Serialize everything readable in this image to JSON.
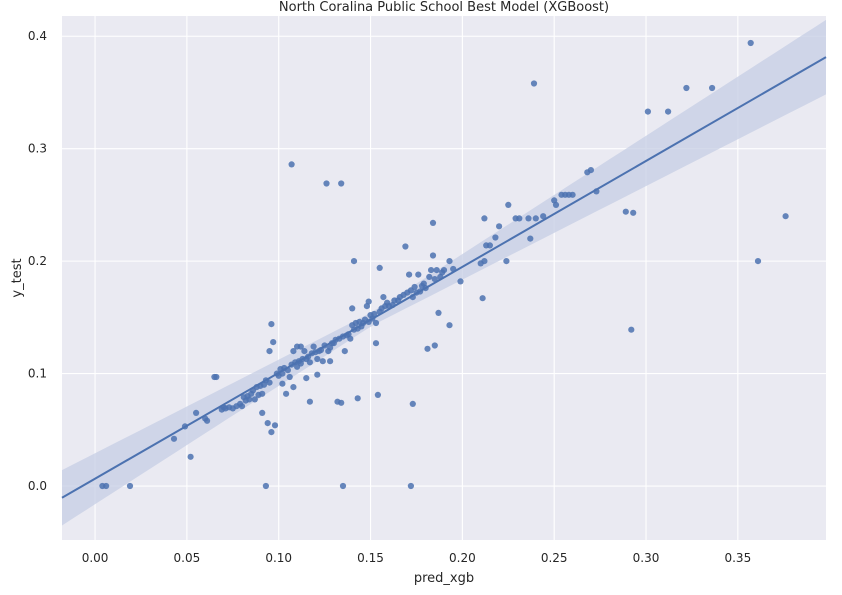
{
  "chart_data": {
    "type": "scatter",
    "title": "North Coralina Public School Best Model (XGBoost)",
    "xlabel": "pred_xgb",
    "ylabel": "y_test",
    "xlim": [
      -0.018,
      0.398
    ],
    "ylim": [
      -0.048,
      0.418
    ],
    "xticks": [
      0.0,
      0.05,
      0.1,
      0.15,
      0.2,
      0.25,
      0.3,
      0.35
    ],
    "xtick_labels": [
      "0.00",
      "0.05",
      "0.10",
      "0.15",
      "0.20",
      "0.25",
      "0.30",
      "0.35"
    ],
    "yticks": [
      0.0,
      0.1,
      0.2,
      0.3,
      0.4
    ],
    "ytick_labels": [
      "0.0",
      "0.1",
      "0.2",
      "0.3",
      "0.4"
    ],
    "grid": true,
    "colors": {
      "background": "#eaeaf2",
      "grid": "#ffffff",
      "point": "#4c72b0",
      "line": "#4c72b0",
      "band": "#c5cde4"
    },
    "regression": {
      "slope": 0.942,
      "intercept": 0.0065,
      "ci_half_width_mean": 0.006,
      "ci_growth": 0.11
    },
    "points": [
      [
        0.004,
        0.0
      ],
      [
        0.006,
        0.0
      ],
      [
        0.019,
        0.0
      ],
      [
        0.043,
        0.042
      ],
      [
        0.049,
        0.053
      ],
      [
        0.052,
        0.026
      ],
      [
        0.055,
        0.065
      ],
      [
        0.06,
        0.06
      ],
      [
        0.061,
        0.058
      ],
      [
        0.065,
        0.097
      ],
      [
        0.066,
        0.097
      ],
      [
        0.069,
        0.068
      ],
      [
        0.07,
        0.07
      ],
      [
        0.071,
        0.069
      ],
      [
        0.073,
        0.07
      ],
      [
        0.075,
        0.069
      ],
      [
        0.077,
        0.071
      ],
      [
        0.079,
        0.073
      ],
      [
        0.08,
        0.071
      ],
      [
        0.081,
        0.079
      ],
      [
        0.082,
        0.076
      ],
      [
        0.083,
        0.08
      ],
      [
        0.084,
        0.077
      ],
      [
        0.085,
        0.082
      ],
      [
        0.086,
        0.085
      ],
      [
        0.087,
        0.077
      ],
      [
        0.088,
        0.088
      ],
      [
        0.089,
        0.081
      ],
      [
        0.09,
        0.089
      ],
      [
        0.091,
        0.082
      ],
      [
        0.091,
        0.065
      ],
      [
        0.092,
        0.09
      ],
      [
        0.093,
        0.094
      ],
      [
        0.093,
        0.0
      ],
      [
        0.094,
        0.056
      ],
      [
        0.095,
        0.12
      ],
      [
        0.095,
        0.092
      ],
      [
        0.096,
        0.144
      ],
      [
        0.096,
        0.048
      ],
      [
        0.097,
        0.128
      ],
      [
        0.098,
        0.054
      ],
      [
        0.099,
        0.1
      ],
      [
        0.1,
        0.098
      ],
      [
        0.101,
        0.104
      ],
      [
        0.102,
        0.1
      ],
      [
        0.102,
        0.091
      ],
      [
        0.103,
        0.105
      ],
      [
        0.104,
        0.082
      ],
      [
        0.105,
        0.103
      ],
      [
        0.106,
        0.097
      ],
      [
        0.107,
        0.286
      ],
      [
        0.107,
        0.108
      ],
      [
        0.108,
        0.12
      ],
      [
        0.108,
        0.088
      ],
      [
        0.109,
        0.11
      ],
      [
        0.11,
        0.106
      ],
      [
        0.11,
        0.124
      ],
      [
        0.111,
        0.111
      ],
      [
        0.112,
        0.109
      ],
      [
        0.112,
        0.124
      ],
      [
        0.113,
        0.113
      ],
      [
        0.114,
        0.12
      ],
      [
        0.115,
        0.096
      ],
      [
        0.115,
        0.113
      ],
      [
        0.116,
        0.115
      ],
      [
        0.117,
        0.11
      ],
      [
        0.117,
        0.075
      ],
      [
        0.118,
        0.118
      ],
      [
        0.119,
        0.124
      ],
      [
        0.12,
        0.119
      ],
      [
        0.121,
        0.113
      ],
      [
        0.121,
        0.099
      ],
      [
        0.122,
        0.12
      ],
      [
        0.123,
        0.121
      ],
      [
        0.124,
        0.111
      ],
      [
        0.125,
        0.125
      ],
      [
        0.126,
        0.269
      ],
      [
        0.127,
        0.12
      ],
      [
        0.128,
        0.123
      ],
      [
        0.128,
        0.111
      ],
      [
        0.129,
        0.127
      ],
      [
        0.13,
        0.127
      ],
      [
        0.131,
        0.13
      ],
      [
        0.132,
        0.075
      ],
      [
        0.133,
        0.131
      ],
      [
        0.134,
        0.269
      ],
      [
        0.134,
        0.074
      ],
      [
        0.135,
        0.133
      ],
      [
        0.135,
        0.0
      ],
      [
        0.136,
        0.12
      ],
      [
        0.137,
        0.134
      ],
      [
        0.138,
        0.135
      ],
      [
        0.139,
        0.131
      ],
      [
        0.14,
        0.143
      ],
      [
        0.14,
        0.158
      ],
      [
        0.141,
        0.2
      ],
      [
        0.141,
        0.139
      ],
      [
        0.142,
        0.145
      ],
      [
        0.143,
        0.078
      ],
      [
        0.143,
        0.14
      ],
      [
        0.144,
        0.146
      ],
      [
        0.145,
        0.142
      ],
      [
        0.146,
        0.145
      ],
      [
        0.147,
        0.148
      ],
      [
        0.148,
        0.16
      ],
      [
        0.149,
        0.164
      ],
      [
        0.149,
        0.146
      ],
      [
        0.15,
        0.152
      ],
      [
        0.151,
        0.149
      ],
      [
        0.152,
        0.153
      ],
      [
        0.153,
        0.127
      ],
      [
        0.153,
        0.145
      ],
      [
        0.154,
        0.081
      ],
      [
        0.155,
        0.155
      ],
      [
        0.155,
        0.194
      ],
      [
        0.156,
        0.158
      ],
      [
        0.157,
        0.168
      ],
      [
        0.158,
        0.16
      ],
      [
        0.159,
        0.163
      ],
      [
        0.16,
        0.16
      ],
      [
        0.162,
        0.161
      ],
      [
        0.163,
        0.165
      ],
      [
        0.165,
        0.165
      ],
      [
        0.166,
        0.168
      ],
      [
        0.168,
        0.17
      ],
      [
        0.169,
        0.213
      ],
      [
        0.17,
        0.172
      ],
      [
        0.171,
        0.188
      ],
      [
        0.172,
        0.0
      ],
      [
        0.172,
        0.174
      ],
      [
        0.173,
        0.073
      ],
      [
        0.173,
        0.168
      ],
      [
        0.174,
        0.177
      ],
      [
        0.175,
        0.172
      ],
      [
        0.176,
        0.188
      ],
      [
        0.177,
        0.173
      ],
      [
        0.178,
        0.178
      ],
      [
        0.179,
        0.18
      ],
      [
        0.18,
        0.176
      ],
      [
        0.181,
        0.122
      ],
      [
        0.182,
        0.186
      ],
      [
        0.183,
        0.192
      ],
      [
        0.184,
        0.234
      ],
      [
        0.184,
        0.205
      ],
      [
        0.185,
        0.125
      ],
      [
        0.185,
        0.184
      ],
      [
        0.186,
        0.192
      ],
      [
        0.187,
        0.154
      ],
      [
        0.188,
        0.186
      ],
      [
        0.189,
        0.19
      ],
      [
        0.19,
        0.192
      ],
      [
        0.193,
        0.143
      ],
      [
        0.193,
        0.2
      ],
      [
        0.195,
        0.193
      ],
      [
        0.199,
        0.182
      ],
      [
        0.21,
        0.198
      ],
      [
        0.211,
        0.167
      ],
      [
        0.212,
        0.2
      ],
      [
        0.212,
        0.238
      ],
      [
        0.213,
        0.214
      ],
      [
        0.215,
        0.214
      ],
      [
        0.218,
        0.221
      ],
      [
        0.22,
        0.231
      ],
      [
        0.224,
        0.2
      ],
      [
        0.225,
        0.25
      ],
      [
        0.229,
        0.238
      ],
      [
        0.231,
        0.238
      ],
      [
        0.236,
        0.238
      ],
      [
        0.237,
        0.22
      ],
      [
        0.239,
        0.358
      ],
      [
        0.24,
        0.238
      ],
      [
        0.244,
        0.24
      ],
      [
        0.25,
        0.254
      ],
      [
        0.251,
        0.25
      ],
      [
        0.254,
        0.259
      ],
      [
        0.256,
        0.259
      ],
      [
        0.258,
        0.259
      ],
      [
        0.26,
        0.259
      ],
      [
        0.268,
        0.279
      ],
      [
        0.27,
        0.281
      ],
      [
        0.273,
        0.262
      ],
      [
        0.289,
        0.244
      ],
      [
        0.292,
        0.139
      ],
      [
        0.293,
        0.243
      ],
      [
        0.301,
        0.333
      ],
      [
        0.312,
        0.333
      ],
      [
        0.322,
        0.354
      ],
      [
        0.336,
        0.354
      ],
      [
        0.357,
        0.394
      ],
      [
        0.361,
        0.2
      ],
      [
        0.376,
        0.24
      ]
    ]
  }
}
